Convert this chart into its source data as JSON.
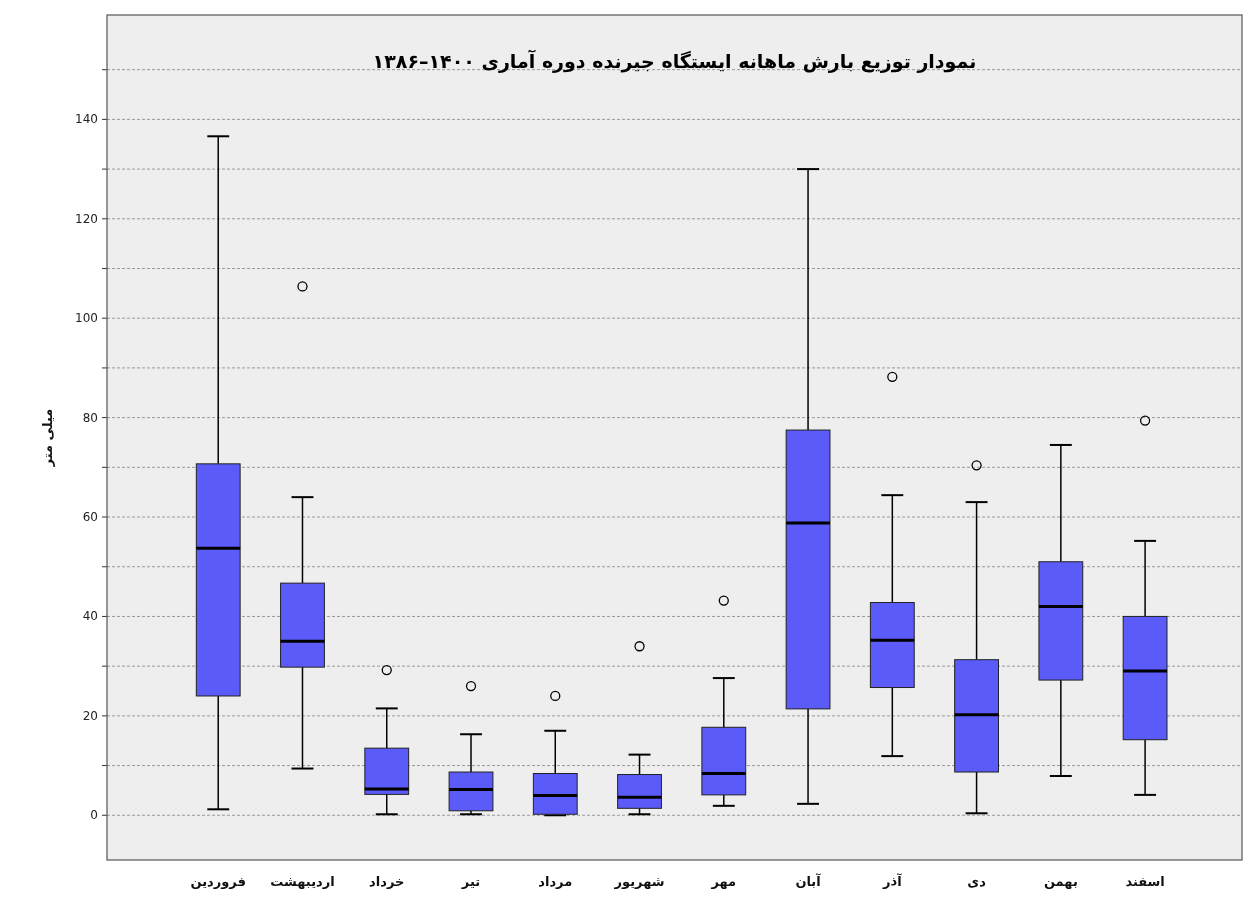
{
  "chart_data": {
    "type": "box",
    "title": "نمودار توزیع بارش ماهانه ایستگاه جیرنده دوره آماری ۱۴۰۰–۱۳۸۶",
    "ylabel": "میلی متر",
    "categories": [
      "فروردین",
      "اردیبهشت",
      "خرداد",
      "تیر",
      "مرداد",
      "شهریور",
      "مهر",
      "آبان",
      "آذر",
      "دی",
      "بهمن",
      "اسفند"
    ],
    "color": "#5b5bfa",
    "boxes": [
      {
        "low": 1.2,
        "q1": 24,
        "median": 53.7,
        "q3": 70.7,
        "high": 136.6
      },
      {
        "low": 9.4,
        "q1": 29.8,
        "median": 35,
        "q3": 46.7,
        "high": 64,
        "outliers": [
          106.4
        ]
      },
      {
        "low": 0.2,
        "q1": 4.2,
        "median": 5.3,
        "q3": 13.5,
        "high": 21.5,
        "outliers": [
          29.2
        ]
      },
      {
        "low": 0.2,
        "q1": 0.9,
        "median": 5.2,
        "q3": 8.7,
        "high": 16.3,
        "outliers": [
          26
        ]
      },
      {
        "low": 0,
        "q1": 0.2,
        "median": 4,
        "q3": 8.4,
        "high": 17,
        "outliers": [
          24
        ]
      },
      {
        "low": 0.2,
        "q1": 1.4,
        "median": 3.6,
        "q3": 8.2,
        "high": 12.2,
        "outliers": [
          34
        ]
      },
      {
        "low": 1.9,
        "q1": 4.1,
        "median": 8.4,
        "q3": 17.7,
        "high": 27.6,
        "outliers": [
          43.2
        ]
      },
      {
        "low": 2.3,
        "q1": 21.4,
        "median": 58.8,
        "q3": 77.5,
        "high": 130
      },
      {
        "low": 11.9,
        "q1": 25.7,
        "median": 35.2,
        "q3": 42.8,
        "high": 64.4,
        "outliers": [
          88.2
        ]
      },
      {
        "low": 0.4,
        "q1": 8.7,
        "median": 20.2,
        "q3": 31.3,
        "high": 63,
        "outliers": [
          70.4
        ]
      },
      {
        "low": 7.9,
        "q1": 27.2,
        "median": 42,
        "q3": 51,
        "high": 74.5
      },
      {
        "low": 4.1,
        "q1": 15.2,
        "median": 29,
        "q3": 40,
        "high": 55.2,
        "outliers": [
          79.4
        ]
      }
    ],
    "ylim": [
      -9,
      161
    ],
    "yticks": [
      0,
      {
        "value": 10,
        "label": null
      },
      20,
      {
        "value": 30,
        "label": null
      },
      40,
      {
        "value": 50,
        "label": null
      },
      60,
      {
        "value": 70,
        "label": null
      },
      80,
      {
        "value": 90,
        "label": null
      },
      100,
      {
        "value": 110,
        "label": null
      },
      120,
      {
        "value": 130,
        "label": null
      },
      140,
      {
        "value": 150,
        "label": null
      }
    ],
    "grid": "y"
  }
}
